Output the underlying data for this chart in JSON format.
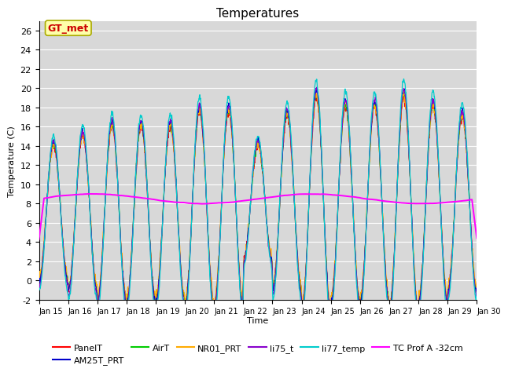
{
  "title": "Temperatures",
  "xlabel": "Time",
  "ylabel": "Temperature (C)",
  "ylim": [
    -2,
    27
  ],
  "yticks": [
    -2,
    0,
    2,
    4,
    6,
    8,
    10,
    12,
    14,
    16,
    18,
    20,
    22,
    24,
    26
  ],
  "xtick_labels": [
    "Jan 15",
    "Jan 16",
    "Jan 17",
    "Jan 18",
    "Jan 19",
    "Jan 20",
    "Jan 21",
    "Jan 22",
    "Jan 23",
    "Jan 24",
    "Jan 25",
    "Jan 26",
    "Jan 27",
    "Jan 28",
    "Jan 29",
    "Jan 30"
  ],
  "bg_color": "#d8d8d8",
  "series_colors": {
    "PanelT": "#ff0000",
    "AM25T_PRT": "#0000cc",
    "AirT": "#00cc00",
    "NR01_PRT": "#ffaa00",
    "li75_t": "#8800cc",
    "li77_temp": "#00cccc",
    "TC Prof A -32cm": "#ff00ff"
  },
  "annotation_text": "GT_met",
  "annotation_color": "#cc0000",
  "annotation_bg": "#ffffaa",
  "annotation_border": "#aaaa00",
  "n_days": 15,
  "pts_per_day": 144,
  "tc_prof_mean": 8.5,
  "background_color": "#ffffff",
  "legend_ncol": 6,
  "legend_row2": "TC Prof A -32cm"
}
